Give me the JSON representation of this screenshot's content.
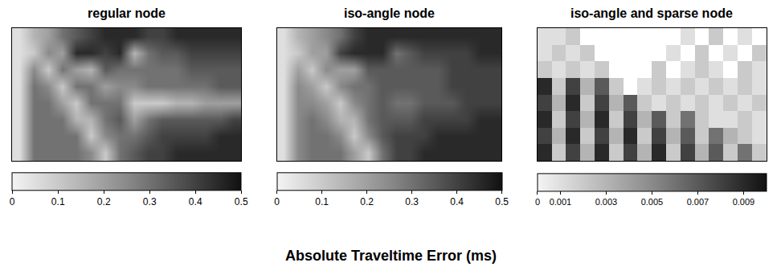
{
  "title": "Absolute Traveltime Error (ms)",
  "chart_data": [
    {
      "type": "heatmap",
      "title": "regular node",
      "tick_labels": false,
      "colorbar_range": [
        0,
        0.5
      ],
      "colorbar_ticks": [
        0,
        0.1,
        0.2,
        0.3,
        0.4,
        0.5
      ],
      "cells": [
        [
          0.05,
          0.15,
          0.2,
          0.3,
          0.35,
          0.4,
          0.45,
          0.45,
          0.45,
          0.4,
          0.4,
          0.45,
          0.45,
          0.45,
          0.45,
          0.45
        ],
        [
          0.05,
          0.1,
          0.25,
          0.2,
          0.45,
          0.45,
          0.4,
          0.45,
          0.15,
          0.3,
          0.35,
          0.35,
          0.4,
          0.4,
          0.4,
          0.4
        ],
        [
          0.05,
          0.25,
          0.1,
          0.3,
          0.2,
          0.15,
          0.35,
          0.3,
          0.3,
          0.3,
          0.3,
          0.3,
          0.35,
          0.35,
          0.35,
          0.35
        ],
        [
          0.05,
          0.3,
          0.25,
          0.1,
          0.3,
          0.3,
          0.2,
          0.25,
          0.25,
          0.3,
          0.3,
          0.3,
          0.3,
          0.3,
          0.35,
          0.35
        ],
        [
          0.05,
          0.3,
          0.3,
          0.2,
          0.1,
          0.3,
          0.3,
          0.3,
          0.1,
          0.1,
          0.1,
          0.15,
          0.15,
          0.2,
          0.2,
          0.2
        ],
        [
          0.05,
          0.3,
          0.3,
          0.3,
          0.15,
          0.15,
          0.3,
          0.35,
          0.2,
          0.3,
          0.35,
          0.35,
          0.35,
          0.35,
          0.35,
          0.4
        ],
        [
          0.05,
          0.3,
          0.3,
          0.3,
          0.3,
          0.1,
          0.25,
          0.3,
          0.3,
          0.35,
          0.4,
          0.4,
          0.4,
          0.4,
          0.45,
          0.45
        ],
        [
          0.05,
          0.3,
          0.3,
          0.3,
          0.3,
          0.25,
          0.1,
          0.3,
          0.35,
          0.4,
          0.4,
          0.45,
          0.45,
          0.45,
          0.45,
          0.45
        ]
      ]
    },
    {
      "type": "heatmap",
      "title": "iso-angle node",
      "tick_labels": false,
      "colorbar_range": [
        0,
        0.5
      ],
      "colorbar_ticks": [
        0,
        0.1,
        0.2,
        0.3,
        0.4,
        0.5
      ],
      "cells": [
        [
          0.05,
          0.15,
          0.2,
          0.25,
          0.3,
          0.4,
          0.45,
          0.45,
          0.45,
          0.45,
          0.45,
          0.45,
          0.45,
          0.45,
          0.45,
          0.45
        ],
        [
          0.05,
          0.1,
          0.2,
          0.2,
          0.4,
          0.45,
          0.45,
          0.45,
          0.3,
          0.35,
          0.4,
          0.4,
          0.4,
          0.4,
          0.45,
          0.45
        ],
        [
          0.05,
          0.2,
          0.1,
          0.25,
          0.2,
          0.2,
          0.35,
          0.35,
          0.35,
          0.35,
          0.35,
          0.35,
          0.4,
          0.4,
          0.4,
          0.4
        ],
        [
          0.05,
          0.25,
          0.2,
          0.1,
          0.25,
          0.3,
          0.3,
          0.35,
          0.35,
          0.35,
          0.35,
          0.35,
          0.4,
          0.4,
          0.4,
          0.4
        ],
        [
          0.05,
          0.25,
          0.25,
          0.2,
          0.1,
          0.25,
          0.3,
          0.35,
          0.3,
          0.3,
          0.35,
          0.35,
          0.35,
          0.4,
          0.4,
          0.4
        ],
        [
          0.05,
          0.25,
          0.3,
          0.25,
          0.15,
          0.15,
          0.3,
          0.35,
          0.35,
          0.35,
          0.4,
          0.4,
          0.4,
          0.4,
          0.45,
          0.45
        ],
        [
          0.05,
          0.25,
          0.3,
          0.3,
          0.25,
          0.1,
          0.25,
          0.35,
          0.4,
          0.4,
          0.4,
          0.45,
          0.45,
          0.45,
          0.45,
          0.45
        ],
        [
          0.05,
          0.25,
          0.3,
          0.3,
          0.3,
          0.2,
          0.1,
          0.3,
          0.4,
          0.4,
          0.45,
          0.45,
          0.45,
          0.45,
          0.45,
          0.45
        ]
      ]
    },
    {
      "type": "heatmap",
      "title": "iso-angle and sparse node",
      "tick_labels": false,
      "colorbar_range": [
        0,
        0.01
      ],
      "colorbar_ticks": [
        0,
        0.001,
        0.003,
        0.005,
        0.007,
        0.009
      ],
      "cells": [
        [
          0.001,
          0.001,
          0.002,
          null,
          null,
          null,
          null,
          null,
          null,
          null,
          0.001,
          null,
          0.002,
          null,
          0.001,
          null
        ],
        [
          0.001,
          0.002,
          0.001,
          0.002,
          null,
          null,
          null,
          null,
          null,
          0.001,
          null,
          0.002,
          null,
          0.001,
          null,
          0.002
        ],
        [
          0.002,
          0.001,
          0.002,
          0.001,
          0.002,
          null,
          null,
          null,
          0.002,
          null,
          0.001,
          0.002,
          0.001,
          null,
          0.002,
          0.001
        ],
        [
          0.009,
          0.002,
          0.008,
          0.003,
          0.007,
          0.002,
          null,
          0.001,
          0.002,
          0.001,
          0.002,
          0.001,
          0.002,
          0.001,
          0.002,
          0.001
        ],
        [
          0.008,
          0.003,
          0.009,
          0.002,
          0.008,
          0.003,
          0.007,
          0.002,
          0.001,
          0.002,
          0.001,
          0.002,
          0.001,
          0.002,
          0.001,
          0.002
        ],
        [
          0.009,
          0.002,
          0.008,
          0.003,
          0.009,
          0.002,
          0.008,
          0.003,
          0.007,
          0.002,
          0.006,
          0.002,
          0.001,
          0.001,
          0.002,
          0.001
        ],
        [
          0.008,
          0.003,
          0.009,
          0.002,
          0.008,
          0.003,
          0.009,
          0.002,
          0.008,
          0.003,
          0.007,
          0.002,
          0.006,
          0.003,
          0.002,
          0.001
        ],
        [
          0.009,
          0.002,
          0.008,
          0.003,
          0.009,
          0.002,
          0.008,
          0.003,
          0.009,
          0.002,
          0.008,
          0.003,
          0.007,
          0.002,
          0.006,
          0.002
        ]
      ]
    }
  ]
}
